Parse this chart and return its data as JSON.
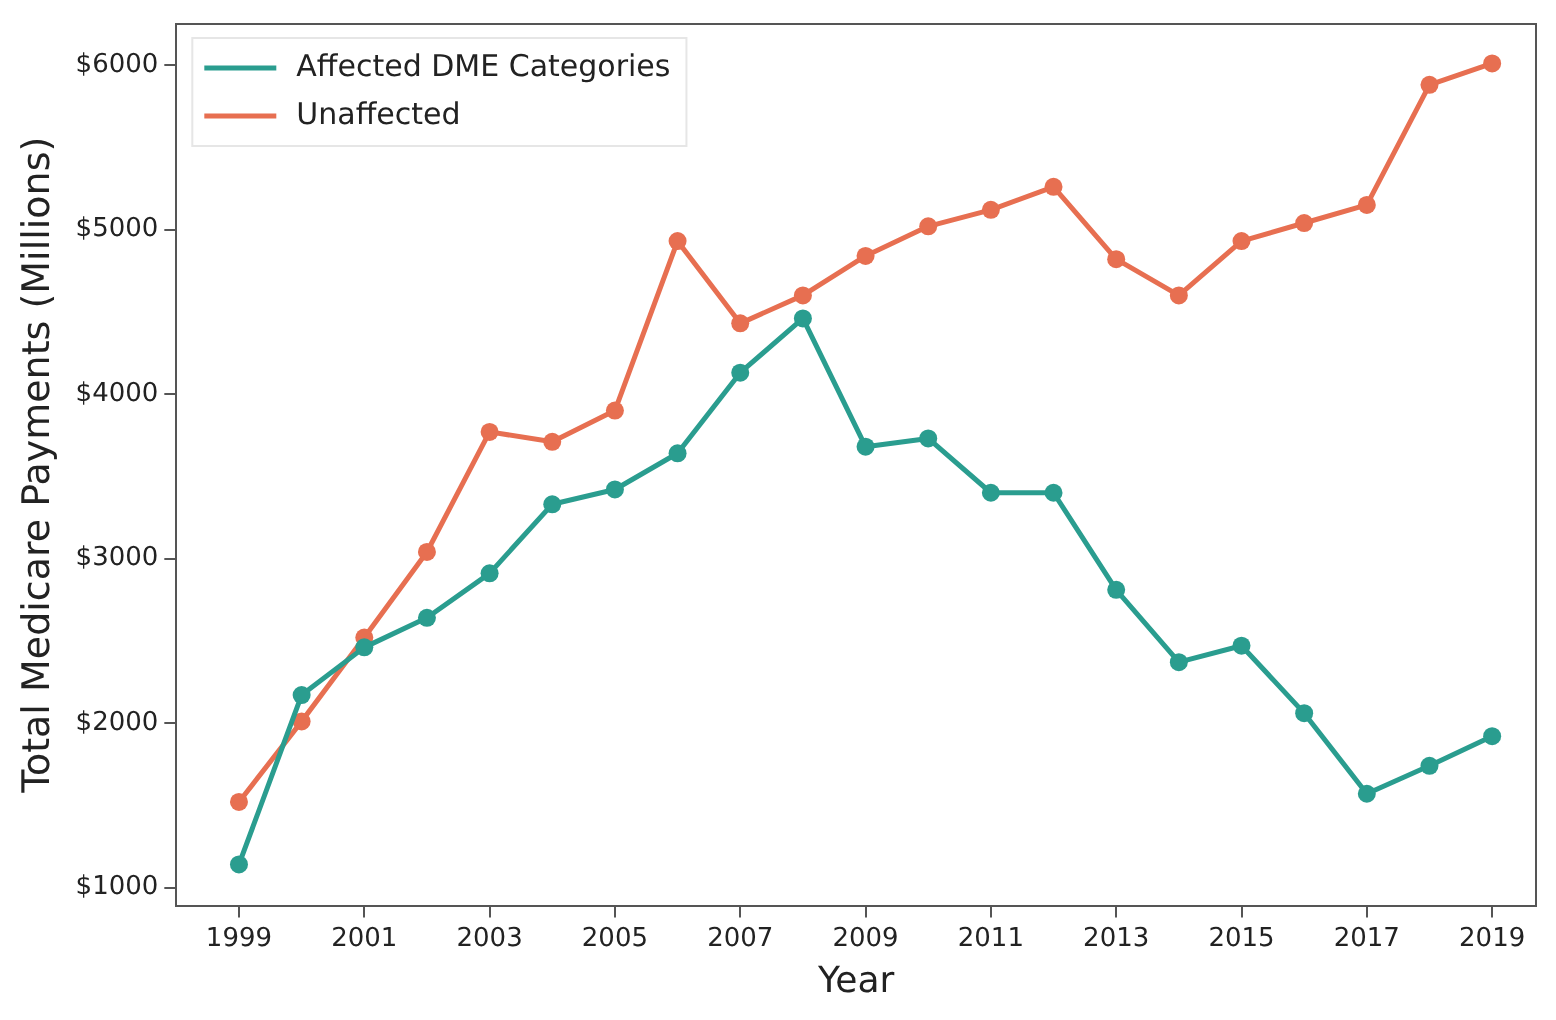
{
  "chart_data": {
    "type": "line",
    "xlabel": "Year",
    "ylabel": "Total Medicare Payments (Millions)",
    "x": [
      1999,
      2000,
      2001,
      2002,
      2003,
      2004,
      2005,
      2006,
      2007,
      2008,
      2009,
      2010,
      2011,
      2012,
      2013,
      2014,
      2015,
      2016,
      2017,
      2018,
      2019
    ],
    "series": [
      {
        "name": "Affected DME Categories",
        "color": "#2a9d8f",
        "values": [
          1140,
          2170,
          2460,
          2640,
          2910,
          3330,
          3420,
          3640,
          4130,
          4460,
          3680,
          3730,
          3400,
          3400,
          2810,
          2370,
          2470,
          2060,
          1570,
          1740,
          1920
        ]
      },
      {
        "name": "Unaffected",
        "color": "#e76f51",
        "values": [
          1520,
          2010,
          2520,
          3040,
          3770,
          3710,
          3900,
          4930,
          4430,
          4600,
          4840,
          5020,
          5120,
          5260,
          4820,
          4600,
          4930,
          5040,
          5150,
          5880,
          6010
        ]
      }
    ],
    "xlim": [
      1998,
      2019.7
    ],
    "xticks": [
      1999,
      2001,
      2003,
      2005,
      2007,
      2009,
      2011,
      2013,
      2015,
      2017,
      2019
    ],
    "ylim": [
      890,
      6250
    ],
    "yticks": [
      {
        "value": 1000,
        "label": "$1000"
      },
      {
        "value": 2000,
        "label": "$2000"
      },
      {
        "value": 3000,
        "label": "$3000"
      },
      {
        "value": 4000,
        "label": "$4000"
      },
      {
        "value": 5000,
        "label": "$5000"
      },
      {
        "value": 6000,
        "label": "$6000"
      }
    ],
    "grid": false,
    "legend": "top left",
    "marker": "circle",
    "line_style": "solid"
  }
}
